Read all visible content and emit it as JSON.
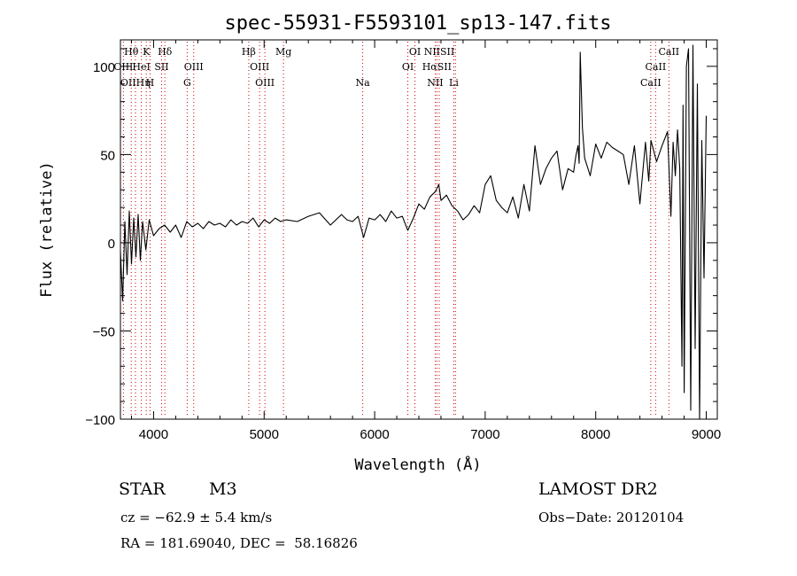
{
  "chart_data": {
    "type": "line",
    "title": "spec-55931-F5593101_sp13-147.fits",
    "xlabel": "Wavelength (Å)",
    "ylabel": "Flux (relative)",
    "xlim": [
      3700,
      9100
    ],
    "ylim": [
      -100,
      115
    ],
    "xticks": [
      4000,
      5000,
      6000,
      7000,
      8000,
      9000
    ],
    "yticks": [
      -100,
      -50,
      0,
      50,
      100
    ],
    "grid": false,
    "series": [
      {
        "color": "#000000",
        "x": [
          3700,
          3720,
          3740,
          3760,
          3780,
          3800,
          3820,
          3840,
          3860,
          3880,
          3900,
          3930,
          3960,
          4000,
          4050,
          4100,
          4150,
          4200,
          4250,
          4300,
          4350,
          4400,
          4450,
          4500,
          4550,
          4600,
          4650,
          4700,
          4750,
          4800,
          4850,
          4900,
          4950,
          5000,
          5050,
          5100,
          5150,
          5200,
          5300,
          5400,
          5500,
          5600,
          5700,
          5750,
          5800,
          5850,
          5900,
          5950,
          6000,
          6050,
          6100,
          6150,
          6200,
          6250,
          6300,
          6350,
          6400,
          6450,
          6500,
          6550,
          6580,
          6600,
          6650,
          6700,
          6750,
          6800,
          6850,
          6900,
          6950,
          7000,
          7050,
          7100,
          7150,
          7200,
          7250,
          7300,
          7350,
          7400,
          7450,
          7500,
          7550,
          7600,
          7650,
          7700,
          7750,
          7800,
          7820,
          7840,
          7850,
          7860,
          7880,
          7900,
          7950,
          8000,
          8050,
          8100,
          8150,
          8200,
          8250,
          8300,
          8350,
          8400,
          8450,
          8480,
          8500,
          8550,
          8600,
          8650,
          8680,
          8700,
          8720,
          8740,
          8760,
          8780,
          8790,
          8800,
          8820,
          8840,
          8860,
          8880,
          8900,
          8920,
          8940,
          8960,
          8980,
          9000
        ],
        "y": [
          -5,
          -33,
          12,
          -18,
          18,
          -12,
          14,
          -8,
          16,
          -10,
          12,
          -4,
          13,
          4,
          8,
          10,
          6,
          10,
          3,
          12,
          9,
          11,
          8,
          12,
          10,
          11,
          9,
          13,
          10,
          12,
          11,
          14,
          9,
          13,
          11,
          14,
          12,
          13,
          12,
          15,
          17,
          10,
          16,
          13,
          12,
          15,
          3,
          14,
          13,
          16,
          12,
          18,
          14,
          15,
          7,
          14,
          22,
          19,
          26,
          29,
          33,
          24,
          27,
          21,
          18,
          13,
          16,
          21,
          17,
          33,
          38,
          24,
          20,
          17,
          26,
          14,
          33,
          18,
          55,
          33,
          42,
          48,
          52,
          30,
          42,
          40,
          49,
          55,
          45,
          108,
          65,
          48,
          38,
          56,
          48,
          57,
          54,
          52,
          50,
          33,
          55,
          22,
          57,
          35,
          58,
          46,
          55,
          63,
          15,
          57,
          38,
          64,
          42,
          -70,
          78,
          -85,
          100,
          110,
          -95,
          112,
          -60,
          90,
          -100,
          58,
          -20,
          72
        ]
      }
    ],
    "annotations": [
      {
        "label": "Hθ",
        "row": 1,
        "wavelength": 3798,
        "line": true
      },
      {
        "label": "K",
        "row": 1,
        "wavelength": 3934,
        "line": true
      },
      {
        "label": "Hδ",
        "row": 1,
        "wavelength": 4102,
        "line": true
      },
      {
        "label": "Hβ",
        "row": 1,
        "wavelength": 4861,
        "line": true
      },
      {
        "label": "Mg",
        "row": 1,
        "wavelength": 5175,
        "line": true
      },
      {
        "label": "OI",
        "row": 1,
        "wavelength": 6364,
        "line": true
      },
      {
        "label": "NIISII",
        "row": 1,
        "wavelength": 6584,
        "line": true
      },
      {
        "label": "CaII",
        "row": 1,
        "wavelength": 8662,
        "line": true
      },
      {
        "label": "OIII",
        "row": 2,
        "wavelength": 3727,
        "line": true
      },
      {
        "label": "HeI",
        "row": 2,
        "wavelength": 3889,
        "line": true
      },
      {
        "label": "SII",
        "row": 2,
        "wavelength": 4072,
        "line": true
      },
      {
        "label": "OIII",
        "row": 2,
        "wavelength": 4363,
        "line": true
      },
      {
        "label": "OIII",
        "row": 2,
        "wavelength": 4959,
        "line": true
      },
      {
        "label": "OI",
        "row": 2,
        "wavelength": 6300,
        "line": true
      },
      {
        "label": "HαSII",
        "row": 2,
        "wavelength": 6563,
        "line": true
      },
      {
        "label": "CaII",
        "row": 2,
        "wavelength": 8542,
        "line": true
      },
      {
        "label": "OIIHη",
        "row": 3,
        "wavelength": 3835,
        "line": true
      },
      {
        "label": "H",
        "row": 3,
        "wavelength": 3968,
        "line": true
      },
      {
        "label": "G",
        "row": 3,
        "wavelength": 4304,
        "line": true
      },
      {
        "label": "OIII",
        "row": 3,
        "wavelength": 5007,
        "line": true
      },
      {
        "label": "Na",
        "row": 3,
        "wavelength": 5892,
        "line": true
      },
      {
        "label": "NII",
        "row": 3,
        "wavelength": 6548,
        "line": true
      },
      {
        "label": "Li",
        "row": 3,
        "wavelength": 6716,
        "line": true
      },
      {
        "label": "CaII",
        "row": 3,
        "wavelength": 8498,
        "line": true
      },
      {
        "label": "",
        "row": 0,
        "wavelength": 6731,
        "line": true
      },
      {
        "label": "",
        "row": 0,
        "wavelength": 3700,
        "line": true
      }
    ],
    "line_color": "#cc0000"
  },
  "info": {
    "object_type": "STAR",
    "subclass": "M3",
    "survey": "LAMOST DR2",
    "cz": "cz = −62.9 ± 5.4 km/s",
    "obs_date": "Obs−Date: 20120104",
    "coords": "RA = 181.69040, DEC =  58.16826"
  }
}
